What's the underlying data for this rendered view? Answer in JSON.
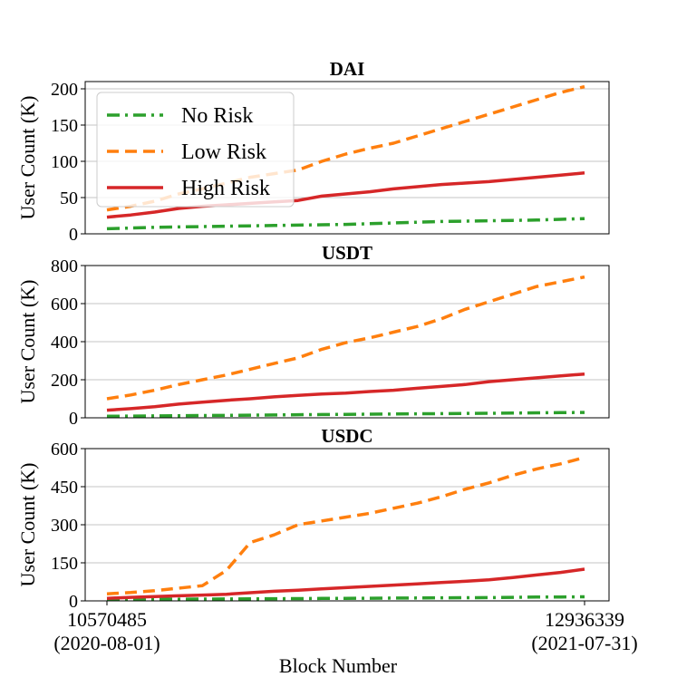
{
  "chart_data": [
    {
      "type": "line",
      "title": "DAI",
      "ylabel": "User Count (K)",
      "ylim": [
        0,
        210
      ],
      "yticks": [
        0,
        50,
        100,
        150,
        200
      ],
      "ytick_labels": [
        "0",
        "50",
        "100",
        "150",
        "200"
      ],
      "grid": "horizontal",
      "x": [
        0,
        0.05,
        0.1,
        0.15,
        0.2,
        0.25,
        0.3,
        0.35,
        0.4,
        0.45,
        0.5,
        0.55,
        0.6,
        0.65,
        0.7,
        0.75,
        0.8,
        0.85,
        0.9,
        0.95,
        1.0
      ],
      "series": [
        {
          "name": "No Risk",
          "color": "#2ca02c",
          "style": "dashdot",
          "values": [
            7,
            8,
            9,
            9.5,
            10,
            10.5,
            11,
            11.5,
            12,
            12.5,
            13,
            14,
            15,
            16,
            17,
            17.5,
            18,
            18.5,
            19,
            20,
            21
          ]
        },
        {
          "name": "Low Risk",
          "color": "#ff7f0e",
          "style": "dashed",
          "values": [
            33,
            38,
            45,
            55,
            62,
            70,
            78,
            83,
            88,
            100,
            110,
            118,
            125,
            135,
            145,
            155,
            165,
            175,
            185,
            195,
            203
          ]
        },
        {
          "name": "High Risk",
          "color": "#d62728",
          "style": "solid",
          "values": [
            23,
            26,
            30,
            35,
            38,
            40,
            42,
            44,
            46,
            52,
            55,
            58,
            62,
            65,
            68,
            70,
            72,
            75,
            78,
            81,
            84
          ]
        }
      ],
      "legend": {
        "position": "upper-left",
        "entries": [
          "No Risk",
          "Low Risk",
          "High Risk"
        ]
      }
    },
    {
      "type": "line",
      "title": "USDT",
      "ylabel": "User Count (K)",
      "ylim": [
        0,
        800
      ],
      "yticks": [
        0,
        200,
        400,
        600,
        800
      ],
      "ytick_labels": [
        "0",
        "200",
        "400",
        "600",
        "800"
      ],
      "grid": "horizontal",
      "x": [
        0,
        0.05,
        0.1,
        0.15,
        0.2,
        0.25,
        0.3,
        0.35,
        0.4,
        0.45,
        0.5,
        0.55,
        0.6,
        0.65,
        0.7,
        0.75,
        0.8,
        0.85,
        0.9,
        0.95,
        1.0
      ],
      "series": [
        {
          "name": "No Risk",
          "color": "#2ca02c",
          "style": "dashdot",
          "values": [
            8,
            9,
            10,
            11,
            12,
            13,
            14,
            15,
            16,
            17,
            18,
            19,
            20,
            21,
            22,
            23,
            24,
            25,
            26,
            27,
            28
          ]
        },
        {
          "name": "Low Risk",
          "color": "#ff7f0e",
          "style": "dashed",
          "values": [
            100,
            120,
            145,
            175,
            200,
            225,
            255,
            285,
            315,
            360,
            395,
            420,
            450,
            480,
            520,
            570,
            610,
            650,
            690,
            715,
            740
          ]
        },
        {
          "name": "High Risk",
          "color": "#d62728",
          "style": "solid",
          "values": [
            40,
            48,
            58,
            72,
            82,
            92,
            100,
            110,
            118,
            125,
            130,
            138,
            145,
            155,
            165,
            175,
            190,
            200,
            210,
            220,
            230
          ]
        }
      ]
    },
    {
      "type": "line",
      "title": "USDC",
      "ylabel": "User Count (K)",
      "ylim": [
        0,
        600
      ],
      "yticks": [
        0,
        150,
        300,
        450,
        600
      ],
      "ytick_labels": [
        "0",
        "150",
        "300",
        "450",
        "600"
      ],
      "grid": "horizontal",
      "xlabel": "Block Number",
      "xtick_labels": [
        {
          "pos": 0,
          "line1": "10570485",
          "line2": "(2020-08-01)"
        },
        {
          "pos": 1,
          "line1": "12936339",
          "line2": "(2021-07-31)"
        }
      ],
      "x": [
        0,
        0.05,
        0.1,
        0.15,
        0.2,
        0.25,
        0.3,
        0.35,
        0.4,
        0.45,
        0.5,
        0.55,
        0.6,
        0.65,
        0.7,
        0.75,
        0.8,
        0.85,
        0.9,
        0.95,
        1.0
      ],
      "series": [
        {
          "name": "No Risk",
          "color": "#2ca02c",
          "style": "dashdot",
          "values": [
            5,
            5.5,
            6,
            6.5,
            7,
            7.5,
            8,
            8.5,
            9,
            9.5,
            10,
            10.5,
            11,
            11.5,
            12,
            12.5,
            13,
            14,
            15,
            15.5,
            16
          ]
        },
        {
          "name": "Low Risk",
          "color": "#ff7f0e",
          "style": "dashed",
          "values": [
            28,
            33,
            40,
            50,
            60,
            120,
            230,
            260,
            300,
            315,
            330,
            345,
            365,
            385,
            410,
            440,
            465,
            495,
            520,
            540,
            565
          ]
        },
        {
          "name": "High Risk",
          "color": "#d62728",
          "style": "solid",
          "values": [
            10,
            14,
            17,
            20,
            23,
            26,
            32,
            38,
            42,
            47,
            52,
            57,
            62,
            67,
            72,
            77,
            83,
            92,
            102,
            112,
            125
          ]
        }
      ]
    }
  ]
}
